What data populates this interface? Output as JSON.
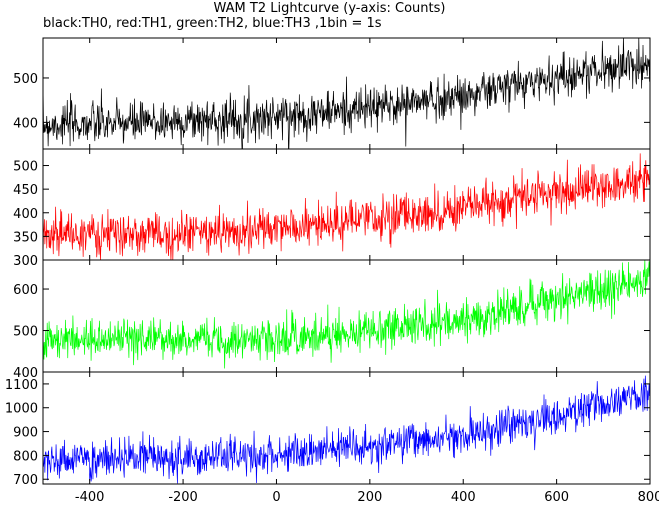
{
  "title": "WAM T2 Lightcurve (y-axis: Counts)",
  "subtitle": "black:TH0, red:TH1, green:TH2, blue:TH3 ,1bin = 1s",
  "chart_data": {
    "type": "line",
    "x": {
      "min": -500,
      "max": 800,
      "step": 1,
      "ticks": [
        -400,
        -200,
        0,
        200,
        400,
        600,
        800
      ]
    },
    "grid": false,
    "legend": "none",
    "series": [
      {
        "label": "TH0",
        "color": "#000000",
        "ylim": [
          340,
          590
        ],
        "ticks": [
          400,
          500
        ],
        "trend": [
          [
            -500,
            395
          ],
          [
            -300,
            398
          ],
          [
            0,
            413
          ],
          [
            200,
            432
          ],
          [
            400,
            460
          ],
          [
            600,
            502
          ],
          [
            800,
            535
          ]
        ],
        "noise": 24
      },
      {
        "label": "TH1",
        "color": "#ff0000",
        "ylim": [
          300,
          535
        ],
        "ticks": [
          300,
          350,
          400,
          450,
          500
        ],
        "trend": [
          [
            -500,
            355
          ],
          [
            -300,
            352
          ],
          [
            0,
            365
          ],
          [
            200,
            385
          ],
          [
            400,
            410
          ],
          [
            600,
            445
          ],
          [
            800,
            470
          ]
        ],
        "noise": 22
      },
      {
        "label": "TH2",
        "color": "#00ff00",
        "ylim": [
          400,
          670
        ],
        "ticks": [
          400,
          500,
          600
        ],
        "trend": [
          [
            -500,
            480
          ],
          [
            -300,
            478
          ],
          [
            0,
            482
          ],
          [
            200,
            500
          ],
          [
            400,
            525
          ],
          [
            600,
            575
          ],
          [
            800,
            625
          ]
        ],
        "noise": 24
      },
      {
        "label": "TH3",
        "color": "#0000ff",
        "ylim": [
          680,
          1150
        ],
        "ticks": [
          700,
          800,
          900,
          1000,
          1100
        ],
        "trend": [
          [
            -500,
            780
          ],
          [
            -300,
            785
          ],
          [
            0,
            795
          ],
          [
            200,
            840
          ],
          [
            400,
            880
          ],
          [
            600,
            960
          ],
          [
            800,
            1060
          ]
        ],
        "noise": 40
      }
    ]
  }
}
